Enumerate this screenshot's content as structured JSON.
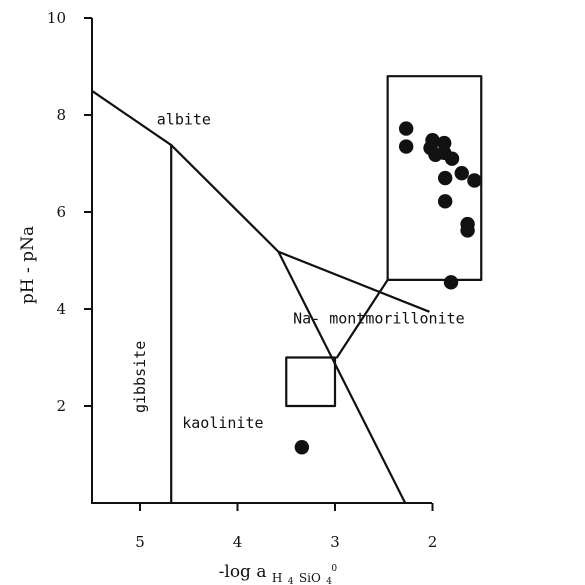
{
  "chart_data": {
    "type": "scatter",
    "title": "",
    "xlabel": "-log a",
    "xlabel_sub": "H",
    "xlabel_sub_2": "4",
    "xlabel_sub_3": "SiO",
    "xlabel_sub_4": "4",
    "xlabel_sup": "0",
    "ylabel": "pH - pNa",
    "xlim": [
      5.5,
      1.5
    ],
    "ylim": [
      0,
      10
    ],
    "x_reversed": true,
    "xticks": [
      5,
      4,
      3,
      2
    ],
    "xtick_labels": [
      "5",
      "4",
      "3",
      "2"
    ],
    "yticks": [
      2,
      4,
      6,
      8,
      10
    ],
    "ytick_labels": [
      "2",
      "4",
      "6",
      "8",
      "10"
    ],
    "grid": false,
    "stability_fields": [
      {
        "label": "albite",
        "anchor": [
          4.55,
          7.8
        ]
      },
      {
        "label": "gibbsite",
        "anchor": [
          4.95,
          2.6
        ],
        "rotation": -90
      },
      {
        "label": "kaolinite",
        "anchor": [
          4.15,
          1.55
        ]
      },
      {
        "label": "Na- montmorillonite",
        "anchor": [
          2.55,
          3.7
        ]
      }
    ],
    "boundaries": [
      {
        "name": "albite-gibbsite/kaolinite",
        "points": [
          [
            5.48,
            8.48
          ],
          [
            4.68,
            7.38
          ],
          [
            3.58,
            5.18
          ],
          [
            2.04,
            3.95
          ]
        ]
      },
      {
        "name": "gibbsite-kaolinite",
        "points": [
          [
            4.68,
            7.38
          ],
          [
            4.68,
            0.0
          ]
        ]
      },
      {
        "name": "kaolinite-Na-montmorillonite",
        "points": [
          [
            3.58,
            5.18
          ],
          [
            2.28,
            0.0
          ]
        ]
      }
    ],
    "inset": {
      "highlight_box": {
        "x": [
          3.0,
          3.5
        ],
        "y": [
          2.0,
          3.0
        ]
      },
      "inset_box": {
        "x": [
          2.46,
          1.5
        ],
        "y": [
          4.6,
          8.8
        ]
      },
      "connector_lines": [
        [
          [
            2.98,
            3.0
          ],
          [
            2.46,
            4.6
          ]
        ]
      ]
    },
    "series": [
      {
        "values": [
          {
            "x": 3.34,
            "y": 1.15
          }
        ]
      },
      {
        "inset": true,
        "values": [
          {
            "x": 2.27,
            "y": 7.72
          },
          {
            "x": 2.27,
            "y": 7.35
          },
          {
            "x": 2.0,
            "y": 7.48
          },
          {
            "x": 2.02,
            "y": 7.32
          },
          {
            "x": 1.97,
            "y": 7.18
          },
          {
            "x": 1.88,
            "y": 7.42
          },
          {
            "x": 1.88,
            "y": 7.22
          },
          {
            "x": 1.8,
            "y": 7.1
          },
          {
            "x": 1.7,
            "y": 6.8
          },
          {
            "x": 1.57,
            "y": 6.65
          },
          {
            "x": 1.87,
            "y": 6.7
          },
          {
            "x": 1.87,
            "y": 6.22
          },
          {
            "x": 1.64,
            "y": 5.75
          },
          {
            "x": 1.64,
            "y": 5.62
          },
          {
            "x": 1.81,
            "y": 4.55
          }
        ]
      }
    ]
  }
}
